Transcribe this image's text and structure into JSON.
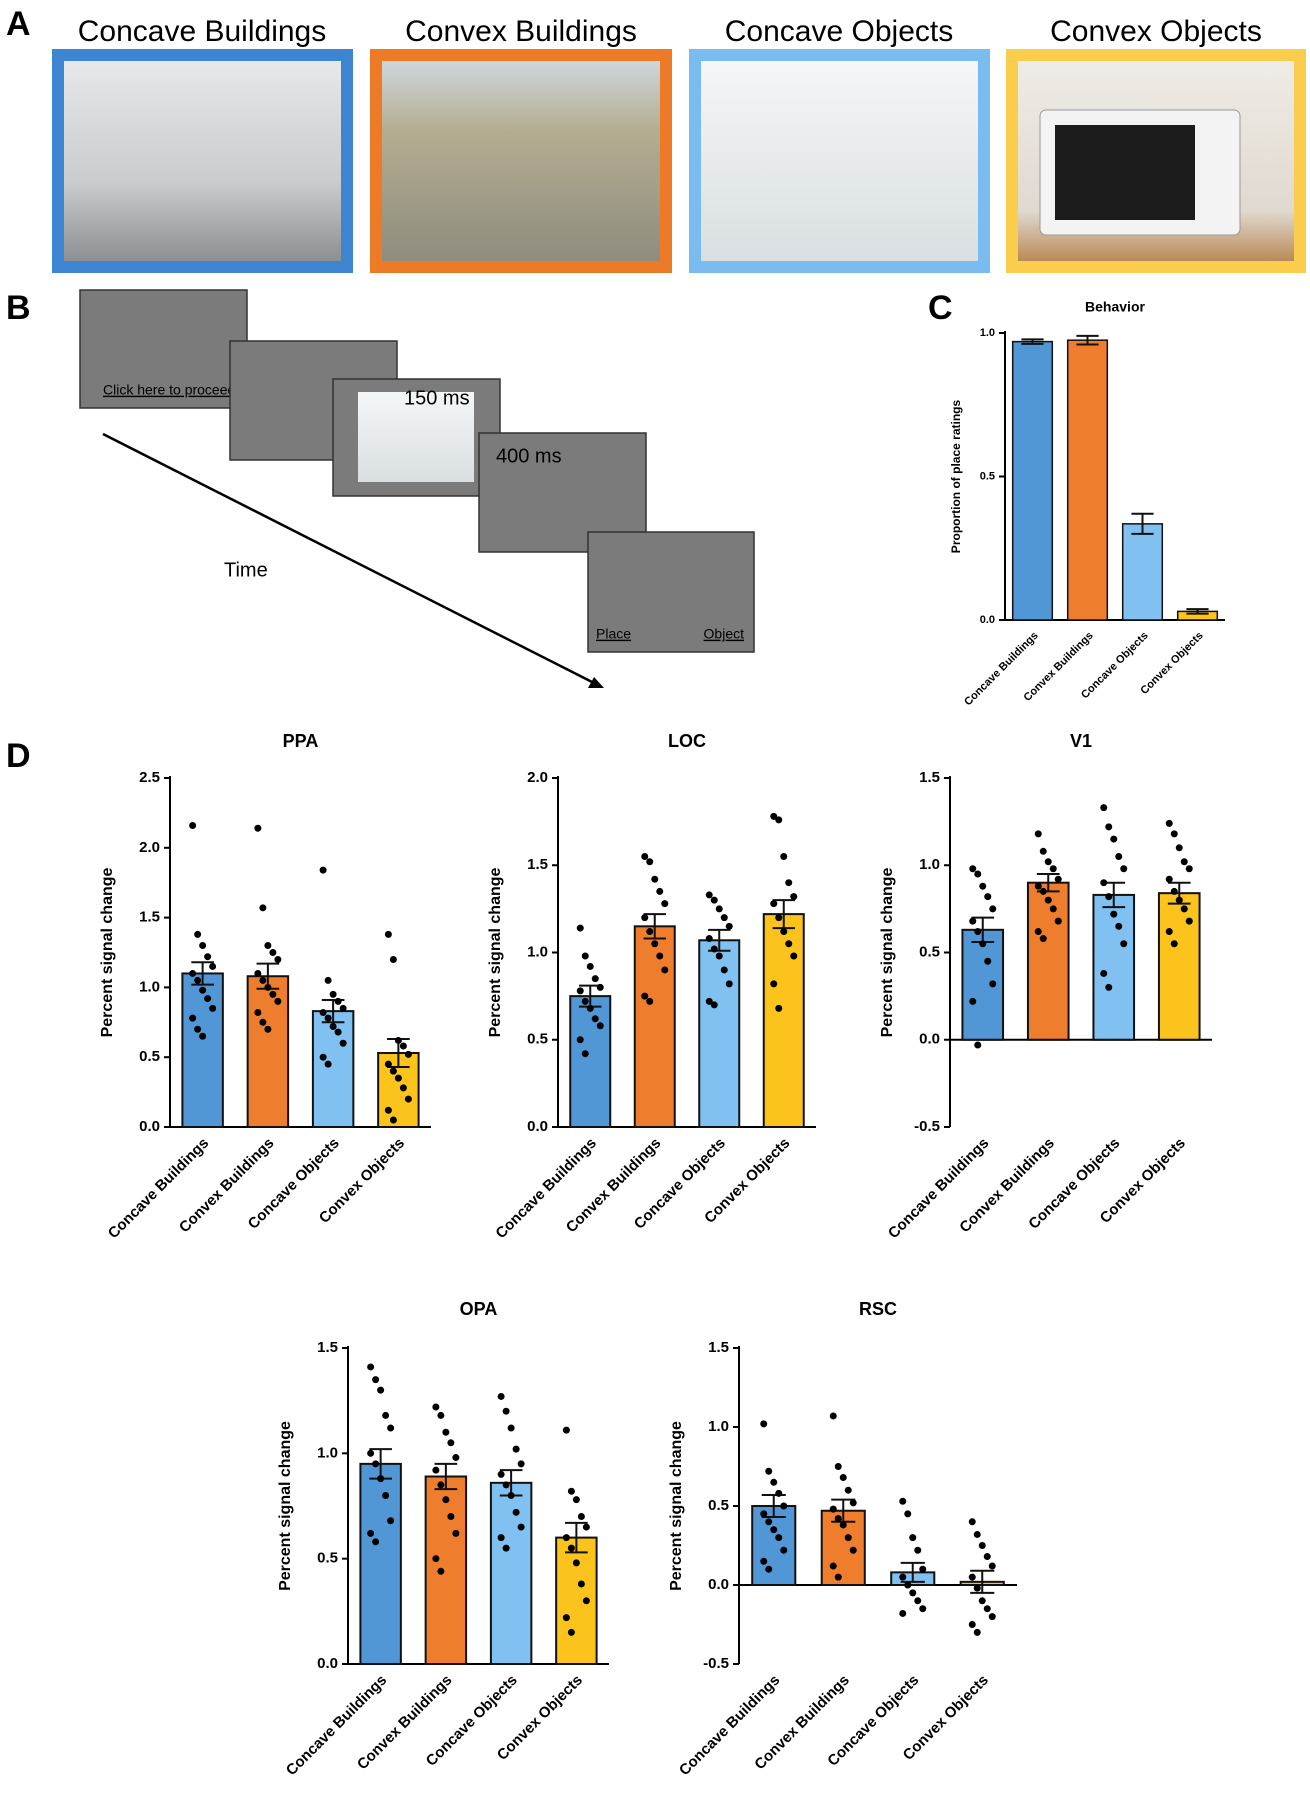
{
  "panel_labels": [
    "A",
    "B",
    "C",
    "D"
  ],
  "stimuli": [
    "Concave Buildings",
    "Convex Buildings",
    "Concave Objects",
    "Convex Objects"
  ],
  "trial": {
    "start_prompt": "Click here to proceed",
    "durations": [
      "150 ms",
      "400 ms"
    ],
    "time_label": "Time",
    "response_options": [
      "Place",
      "Object"
    ]
  },
  "chart_data": [
    {
      "type": "bar",
      "title": "Behavior",
      "y_label": "Proportion of place ratings",
      "categories": [
        "Concave Buildings",
        "Convex Buildings",
        "Concave Objects",
        "Convex Objects"
      ],
      "colors": [
        "#5197d6",
        "#ee7e2d",
        "#80c1f1",
        "#fbc31c"
      ],
      "values": [
        0.97,
        0.975,
        0.335,
        0.03
      ],
      "errors": [
        0.008,
        0.015,
        0.035,
        0.008
      ],
      "ylim": [
        0,
        1
      ],
      "yticks": [
        {
          "value": 0,
          "label": "0.0"
        },
        0.5,
        {
          "value": 1,
          "label": "1.0"
        }
      ]
    },
    {
      "type": "bar",
      "title": "PPA",
      "y_label": "Percent signal change",
      "categories": [
        "Concave Buildings",
        "Convex Buildings",
        "Concave Objects",
        "Convex Objects"
      ],
      "colors": [
        "#5197d6",
        "#ee7e2d",
        "#80c1f1",
        "#fbc31c"
      ],
      "values": [
        1.1,
        1.08,
        0.83,
        0.53
      ],
      "errors": [
        0.08,
        0.09,
        0.08,
        0.1
      ],
      "points": [
        [
          2.16,
          1.38,
          1.3,
          1.22,
          1.15,
          1.1,
          1.05,
          0.98,
          0.92,
          0.85,
          0.78,
          0.7,
          0.65
        ],
        [
          2.14,
          1.57,
          1.3,
          1.25,
          1.2,
          1.1,
          1.05,
          1.0,
          0.95,
          0.9,
          0.82,
          0.75,
          0.7
        ],
        [
          1.84,
          1.05,
          0.95,
          0.9,
          0.85,
          0.82,
          0.78,
          0.72,
          0.68,
          0.6,
          0.5,
          0.45
        ],
        [
          1.38,
          1.2,
          0.62,
          0.58,
          0.52,
          0.45,
          0.4,
          0.35,
          0.28,
          0.2,
          0.12,
          0.05
        ]
      ],
      "ylim": [
        0,
        2.5
      ],
      "yticks": [
        {
          "value": 0,
          "label": "0.0"
        },
        0.5,
        {
          "value": 1,
          "label": "1.0"
        },
        1.5,
        {
          "value": 2,
          "label": "2.0"
        },
        2.5
      ]
    },
    {
      "type": "bar",
      "title": "LOC",
      "y_label": "Percent signal change",
      "categories": [
        "Concave Buildings",
        "Convex Buildings",
        "Concave Objects",
        "Convex Objects"
      ],
      "colors": [
        "#5197d6",
        "#ee7e2d",
        "#80c1f1",
        "#fbc31c"
      ],
      "values": [
        0.75,
        1.15,
        1.07,
        1.22
      ],
      "errors": [
        0.06,
        0.07,
        0.06,
        0.08
      ],
      "points": [
        [
          1.14,
          0.98,
          0.92,
          0.85,
          0.8,
          0.78,
          0.72,
          0.68,
          0.62,
          0.58,
          0.5,
          0.42
        ],
        [
          1.55,
          1.52,
          1.42,
          1.35,
          1.28,
          1.2,
          1.12,
          1.05,
          0.98,
          0.9,
          0.75,
          0.72
        ],
        [
          1.33,
          1.3,
          1.25,
          1.2,
          1.15,
          1.08,
          1.02,
          0.98,
          0.9,
          0.82,
          0.72,
          0.7
        ],
        [
          1.78,
          1.76,
          1.55,
          1.4,
          1.32,
          1.28,
          1.2,
          1.12,
          1.05,
          0.98,
          0.82,
          0.68
        ]
      ],
      "ylim": [
        0,
        2
      ],
      "yticks": [
        {
          "value": 0,
          "label": "0.0"
        },
        0.5,
        {
          "value": 1,
          "label": "1.0"
        },
        1.5,
        {
          "value": 2,
          "label": "2.0"
        }
      ]
    },
    {
      "type": "bar",
      "title": "V1",
      "y_label": "Percent signal change",
      "categories": [
        "Concave Buildings",
        "Convex Buildings",
        "Concave Objects",
        "Convex Objects"
      ],
      "colors": [
        "#5197d6",
        "#ee7e2d",
        "#80c1f1",
        "#fbc31c"
      ],
      "values": [
        0.63,
        0.9,
        0.83,
        0.84
      ],
      "errors": [
        0.07,
        0.05,
        0.07,
        0.06
      ],
      "points": [
        [
          0.98,
          0.95,
          0.88,
          0.82,
          0.75,
          0.68,
          0.62,
          0.55,
          0.45,
          0.32,
          0.22,
          -0.03
        ],
        [
          1.18,
          1.08,
          1.02,
          0.98,
          0.92,
          0.88,
          0.85,
          0.8,
          0.75,
          0.68,
          0.62,
          0.58
        ],
        [
          1.33,
          1.22,
          1.15,
          1.05,
          0.98,
          0.9,
          0.82,
          0.72,
          0.65,
          0.55,
          0.38,
          0.3
        ],
        [
          1.24,
          1.18,
          1.1,
          1.02,
          0.98,
          0.92,
          0.85,
          0.8,
          0.75,
          0.68,
          0.62,
          0.55
        ]
      ],
      "ylim": [
        -0.5,
        1.5
      ],
      "yticks": [
        -0.5,
        {
          "value": 0,
          "label": "0.0"
        },
        0.5,
        {
          "value": 1,
          "label": "1.0"
        },
        1.5
      ]
    },
    {
      "type": "bar",
      "title": "OPA",
      "y_label": "Percent signal change",
      "categories": [
        "Concave Buildings",
        "Convex Buildings",
        "Concave Objects",
        "Convex Objects"
      ],
      "colors": [
        "#5197d6",
        "#ee7e2d",
        "#80c1f1",
        "#fbc31c"
      ],
      "values": [
        0.95,
        0.89,
        0.86,
        0.6
      ],
      "errors": [
        0.07,
        0.06,
        0.06,
        0.07
      ],
      "points": [
        [
          1.41,
          1.35,
          1.3,
          1.18,
          1.12,
          1.0,
          0.95,
          0.88,
          0.8,
          0.68,
          0.62,
          0.58
        ],
        [
          1.22,
          1.18,
          1.1,
          1.05,
          0.98,
          0.92,
          0.85,
          0.78,
          0.7,
          0.62,
          0.5,
          0.44
        ],
        [
          1.27,
          1.2,
          1.12,
          1.02,
          0.95,
          0.9,
          0.85,
          0.8,
          0.72,
          0.65,
          0.6,
          0.55
        ],
        [
          1.11,
          0.82,
          0.78,
          0.7,
          0.65,
          0.6,
          0.55,
          0.48,
          0.38,
          0.3,
          0.22,
          0.15
        ]
      ],
      "ylim": [
        0,
        1.5
      ],
      "yticks": [
        {
          "value": 0,
          "label": "0.0"
        },
        0.5,
        {
          "value": 1,
          "label": "1.0"
        },
        1.5
      ]
    },
    {
      "type": "bar",
      "title": "RSC",
      "y_label": "Percent signal change",
      "categories": [
        "Concave Buildings",
        "Convex Buildings",
        "Concave Objects",
        "Convex Objects"
      ],
      "colors": [
        "#5197d6",
        "#ee7e2d",
        "#80c1f1",
        "#fbc31c"
      ],
      "values": [
        0.5,
        0.47,
        0.08,
        0.02
      ],
      "errors": [
        0.07,
        0.07,
        0.06,
        0.07
      ],
      "points": [
        [
          1.02,
          0.72,
          0.65,
          0.58,
          0.5,
          0.45,
          0.4,
          0.35,
          0.3,
          0.22,
          0.15,
          0.1
        ],
        [
          1.07,
          0.75,
          0.68,
          0.6,
          0.52,
          0.48,
          0.42,
          0.38,
          0.3,
          0.22,
          0.12,
          0.05
        ],
        [
          0.53,
          0.45,
          0.3,
          0.22,
          0.1,
          0.05,
          0.0,
          -0.05,
          -0.1,
          -0.15,
          -0.18
        ],
        [
          0.4,
          0.32,
          0.25,
          0.18,
          0.12,
          0.05,
          -0.02,
          -0.1,
          -0.15,
          -0.2,
          -0.25,
          -0.3
        ]
      ],
      "ylim": [
        -0.5,
        1.5
      ],
      "yticks": [
        -0.5,
        {
          "value": 0,
          "label": "0.0"
        },
        0.5,
        {
          "value": 1,
          "label": "1.0"
        },
        1.5
      ]
    }
  ]
}
